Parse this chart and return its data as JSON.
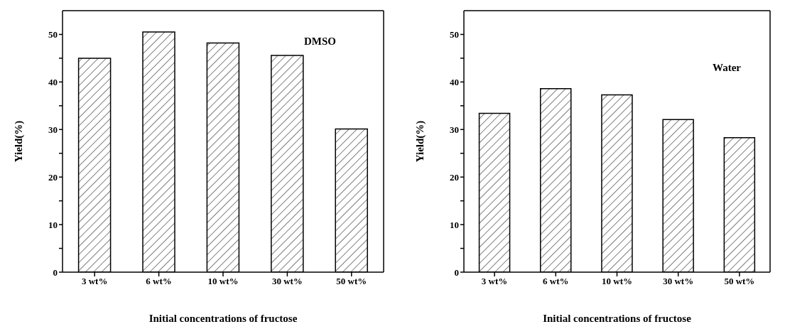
{
  "chart_data": [
    {
      "type": "bar",
      "categories": [
        "3 wt%",
        "6 wt%",
        "10 wt%",
        "30 wt%",
        "50 wt%"
      ],
      "values": [
        45.0,
        50.5,
        48.2,
        45.6,
        30.1
      ],
      "color": "#000000",
      "xlabel": "Initial concentrations of fructose",
      "ylabel": "Yield(%)",
      "ylim": [
        0,
        55
      ],
      "yticks": [
        0,
        {
          "value": 5,
          "label": null
        },
        10,
        {
          "value": 15,
          "label": null
        },
        20,
        {
          "value": 25,
          "label": null
        },
        30,
        {
          "value": 35,
          "label": null
        },
        40,
        {
          "value": 45,
          "label": null
        },
        50
      ],
      "annotations": [
        "DMSO"
      ],
      "grid": false,
      "legend": false
    },
    {
      "type": "bar",
      "categories": [
        "3 wt%",
        "6 wt%",
        "10 wt%",
        "30 wt%",
        "50 wt%"
      ],
      "values": [
        33.4,
        38.6,
        37.3,
        32.1,
        28.3
      ],
      "color": "#000000",
      "xlabel": "Initial concentrations of fructose",
      "ylabel": "Yield(%)",
      "ylim": [
        0,
        55
      ],
      "yticks": [
        0,
        {
          "value": 5,
          "label": null
        },
        10,
        {
          "value": 15,
          "label": null
        },
        20,
        {
          "value": 25,
          "label": null
        },
        30,
        {
          "value": 35,
          "label": null
        },
        40,
        {
          "value": 45,
          "label": null
        },
        50
      ],
      "annotations": [
        "Water"
      ],
      "grid": false,
      "legend": false
    }
  ]
}
